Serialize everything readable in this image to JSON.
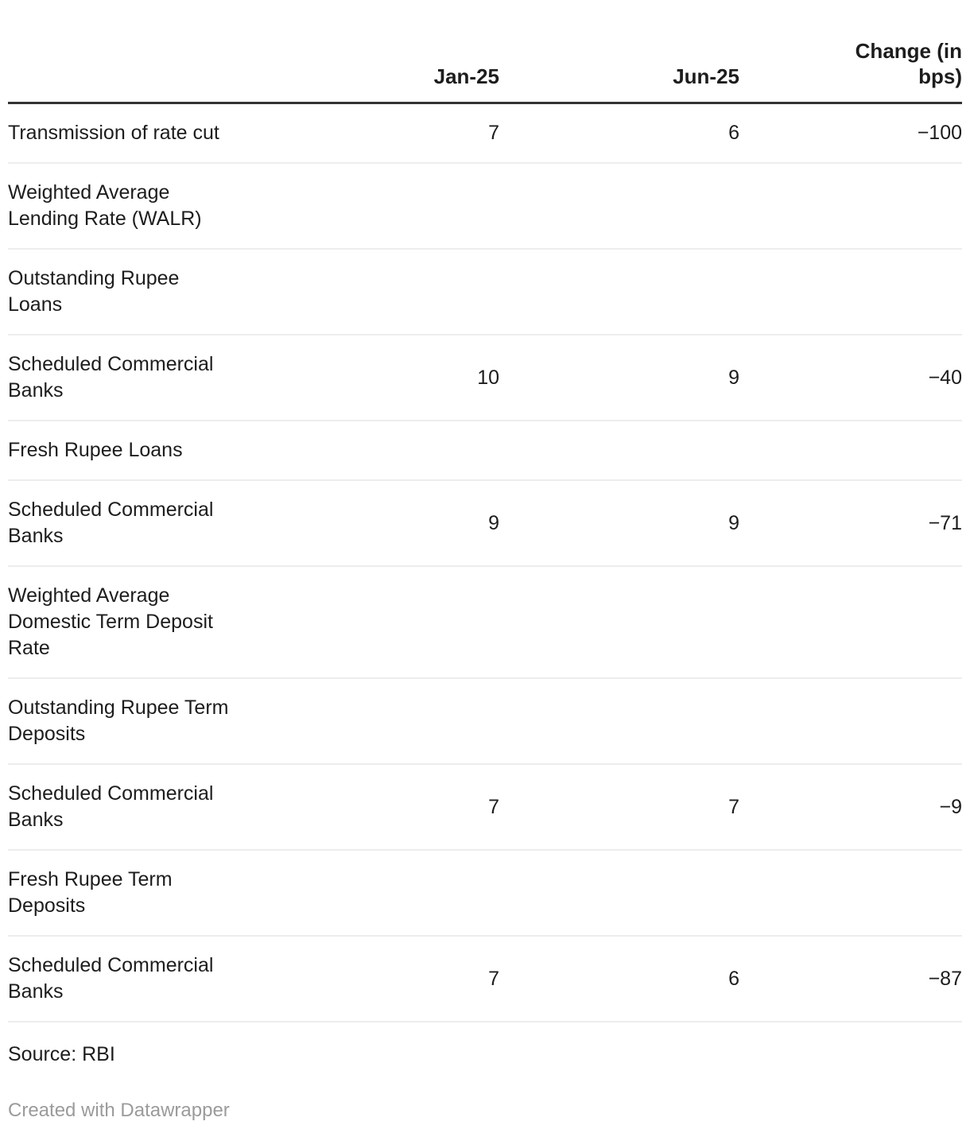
{
  "chart_data": {
    "type": "table",
    "title": "",
    "columns": [
      "",
      "Jan-25",
      "Jun-25",
      "Change (in bps)"
    ],
    "rows": [
      [
        "Transmission of rate cut",
        "7",
        "6",
        "−100"
      ],
      [
        "Weighted Average Lending Rate (WALR)",
        "",
        "",
        ""
      ],
      [
        "Outstanding Rupee Loans",
        "",
        "",
        ""
      ],
      [
        "Scheduled Commercial Banks",
        "10",
        "9",
        "−40"
      ],
      [
        "Fresh Rupee Loans",
        "",
        "",
        ""
      ],
      [
        "Scheduled Commercial Banks",
        "9",
        "9",
        "−71"
      ],
      [
        "Weighted Average Domestic Term Deposit Rate",
        "",
        "",
        ""
      ],
      [
        "Outstanding Rupee Term Deposits",
        "",
        "",
        ""
      ],
      [
        "Scheduled Commercial Banks",
        "7",
        "7",
        "−9"
      ],
      [
        "Fresh Rupee Term Deposits",
        "",
        "",
        ""
      ],
      [
        "Scheduled Commercial Banks",
        "7",
        "6",
        "−87"
      ]
    ],
    "source": "Source: RBI",
    "attribution": "Created with Datawrapper"
  },
  "table": {
    "header": {
      "label": "",
      "jan": "Jan-25",
      "jun": "Jun-25",
      "change": "Change (in\nbps)"
    },
    "rows": [
      {
        "label": "Transmission of rate cut",
        "jan": "7",
        "jun": "6",
        "change": "−100"
      },
      {
        "label": "Weighted Average\nLending Rate (WALR)",
        "jan": "",
        "jun": "",
        "change": ""
      },
      {
        "label": "Outstanding Rupee\nLoans",
        "jan": "",
        "jun": "",
        "change": ""
      },
      {
        "label": "Scheduled Commercial\nBanks",
        "jan": "10",
        "jun": "9",
        "change": "−40"
      },
      {
        "label": "Fresh Rupee Loans",
        "jan": "",
        "jun": "",
        "change": ""
      },
      {
        "label": "Scheduled Commercial\nBanks",
        "jan": "9",
        "jun": "9",
        "change": "−71"
      },
      {
        "label": "Weighted Average\nDomestic Term Deposit\nRate",
        "jan": "",
        "jun": "",
        "change": ""
      },
      {
        "label": "Outstanding Rupee Term\nDeposits",
        "jan": "",
        "jun": "",
        "change": ""
      },
      {
        "label": "Scheduled Commercial\nBanks",
        "jan": "7",
        "jun": "7",
        "change": "−9"
      },
      {
        "label": "Fresh Rupee Term\nDeposits",
        "jan": "",
        "jun": "",
        "change": ""
      },
      {
        "label": "Scheduled Commercial\nBanks",
        "jan": "7",
        "jun": "6",
        "change": "−87"
      }
    ]
  },
  "footer": {
    "source": "Source: RBI",
    "attribution": "Created with Datawrapper"
  },
  "colors": {
    "text": "#1d1d1d",
    "header_rule": "#333333",
    "row_separator": "#ededed",
    "attribution_text": "#9b9b9b"
  }
}
